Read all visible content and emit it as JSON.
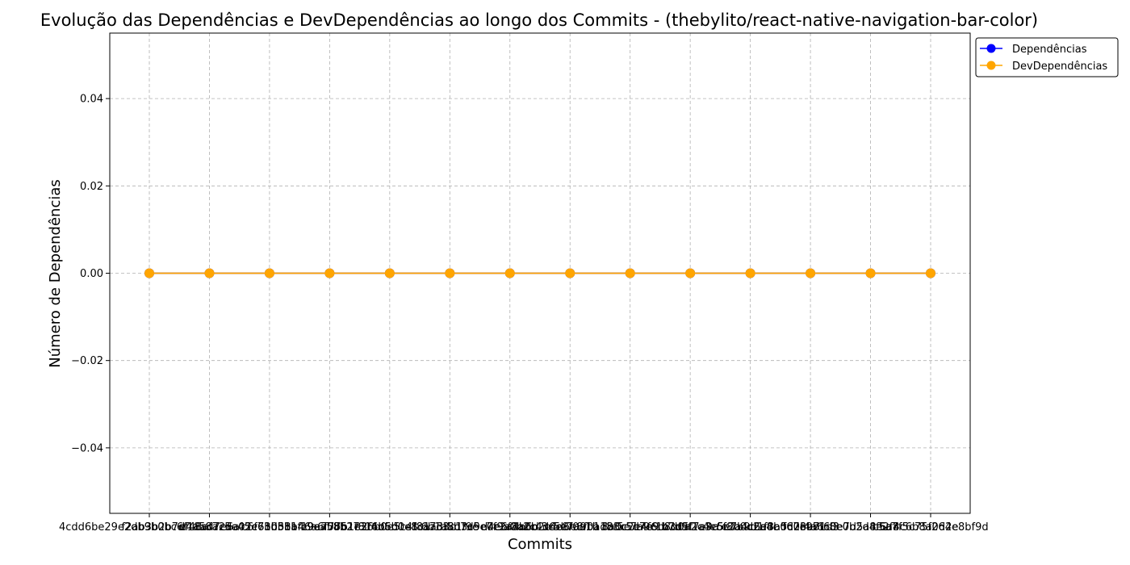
{
  "chart_data": {
    "type": "line",
    "title": "Evolução das Dependências e DevDependências ao longo dos Commits - (thebylito/react-native-navigation-bar-color)",
    "xlabel": "Commits",
    "ylabel": "Número de Dependências",
    "categories": [
      "4cdd6be29e2db9b0bc6f18ad7e6a",
      "f2ab3b2b7df48af7c5e45e61b51a",
      "e4a58a2da02c6b0bb1fc9ea58b27",
      "c6f73d38b46a6f77b1f816b5d1e1",
      "19a70b51e36b0e5c4f8a7d3c1f9e",
      "2f4d6b0e8c1a3f5b7d9e0c2a4b6d",
      "6b1a8d3c5e7f9a0b2c4d6e8f0a1b",
      "d4e6f8a0b2c4d6e8f0a1b3c5d7e9",
      "3c5e7a9b1d3f5e7a9c1b3d5f7e9a",
      "8a0c2e4f6b8d0a2c4e6f8b0d2a4c",
      "b7d9f1a3c5e7b9d1f3a5c7e9b1d3",
      "e2a4c6e8b0d2f4a6c8e0b2d4f6a8",
      "f603e7f60e7d5a8e2f4c6b8a0d2e",
      "c5a7f5c75f264e8bf9d"
    ],
    "series": [
      {
        "name": "Dependências",
        "color": "#0000ff",
        "values": [
          0,
          0,
          0,
          0,
          0,
          0,
          0,
          0,
          0,
          0,
          0,
          0,
          0,
          0
        ]
      },
      {
        "name": "DevDependências",
        "color": "#ffa500",
        "values": [
          0,
          0,
          0,
          0,
          0,
          0,
          0,
          0,
          0,
          0,
          0,
          0,
          0,
          0
        ]
      }
    ],
    "ylim": [
      -0.055,
      0.055
    ],
    "yticks": [
      -0.04,
      -0.02,
      0.0,
      0.02,
      0.04
    ],
    "ytick_labels": [
      "−0.04",
      "−0.02",
      "0.00",
      "0.02",
      "0.04"
    ],
    "grid": true,
    "legend_position": "outside top-right"
  }
}
